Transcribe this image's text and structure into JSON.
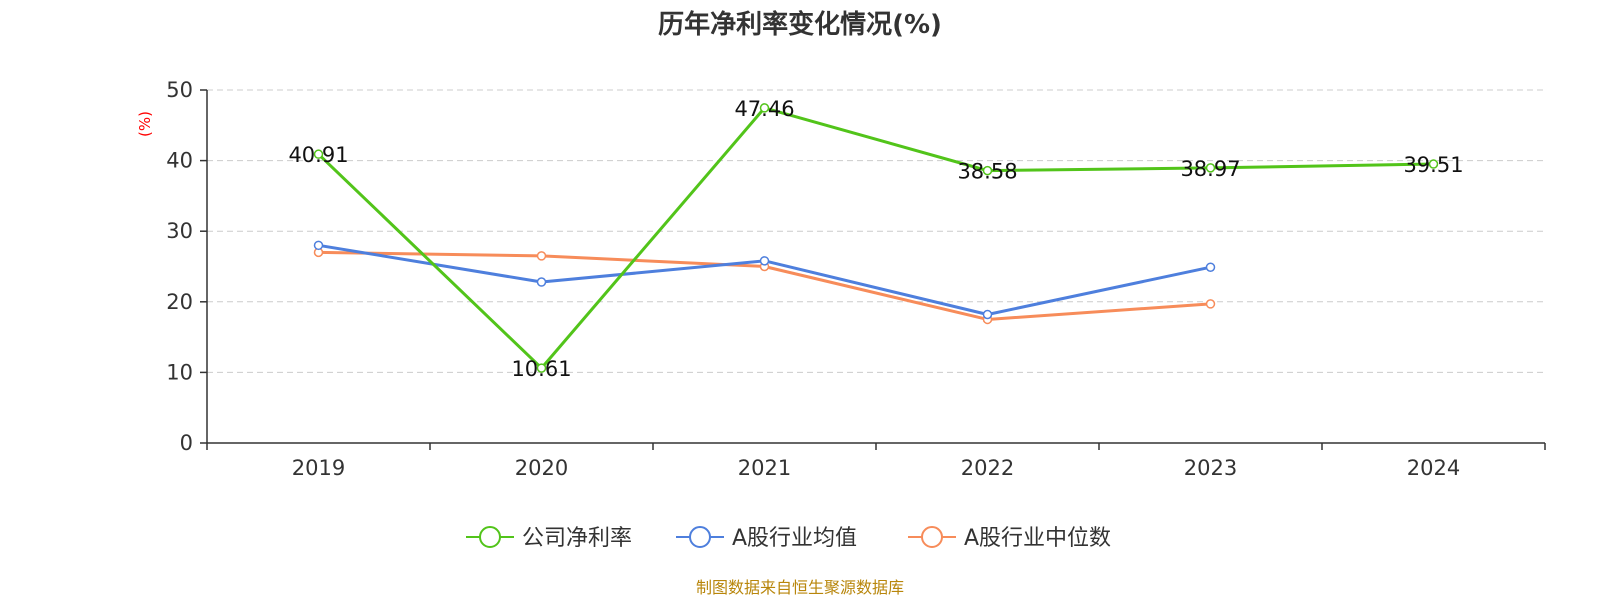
{
  "chart_data": {
    "type": "line",
    "title": "历年净利率变化情况(%)",
    "ylabel": "(%)",
    "xlabel": "",
    "categories": [
      "2019",
      "2020",
      "2021",
      "2022",
      "2023",
      "2024"
    ],
    "ylim": [
      0,
      50
    ],
    "yticks": [
      0,
      10,
      20,
      30,
      40,
      50
    ],
    "grid": true,
    "legend_position": "bottom-center",
    "series": [
      {
        "name": "公司净利率",
        "color": "#52c41a",
        "values": [
          40.91,
          10.61,
          47.46,
          38.58,
          38.97,
          39.51
        ],
        "labels": [
          "40.91",
          "10.61",
          "47.46",
          "38.58",
          "38.97",
          "39.51"
        ]
      },
      {
        "name": "A股行业均值",
        "color": "#4e7fdd",
        "values": [
          28.0,
          22.8,
          25.8,
          18.2,
          24.9,
          null
        ]
      },
      {
        "name": "A股行业中位数",
        "color": "#f78c5a",
        "values": [
          27.0,
          26.5,
          25.0,
          17.5,
          19.7,
          null
        ]
      }
    ]
  },
  "footer": {
    "source": "制图数据来自恒生聚源数据库"
  }
}
